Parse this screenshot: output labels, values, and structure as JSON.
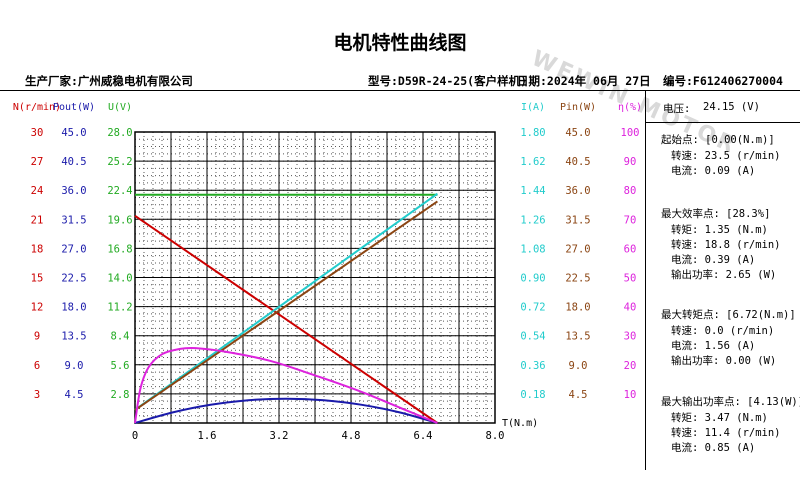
{
  "title": "电机特性曲线图",
  "watermark": "WEWIN MOTOR",
  "manufacturer": "生产厂家:广州威稳电机有限公司",
  "model": "型号:D59R-24-25(客户样机)",
  "date": "日期:2024年 06月 27日",
  "serial": "编号:F612406270004",
  "colors": {
    "n": "#cc0000",
    "pout": "#1a1aaa",
    "u": "#22aa22",
    "i": "#22cccc",
    "pin": "#8b4513",
    "eff": "#dd22dd"
  },
  "chart_data": {
    "type": "line",
    "xlabel": "T(N.m)",
    "x_ticks": [
      "0",
      "1.6",
      "3.2",
      "4.8",
      "6.4",
      "8.0"
    ],
    "xlim": [
      0,
      8.0
    ],
    "axes": [
      {
        "label": "N(r/min)",
        "side": "left",
        "color": "#cc0000",
        "ticks": [
          "3",
          "6",
          "9",
          "12",
          "15",
          "18",
          "21",
          "24",
          "27",
          "30"
        ],
        "range": [
          0,
          33
        ]
      },
      {
        "label": "Pout(W)",
        "side": "left",
        "color": "#1a1aaa",
        "ticks": [
          "4.5",
          "9.0",
          "13.5",
          "18.0",
          "22.5",
          "27.0",
          "31.5",
          "36.0",
          "40.5",
          "45.0"
        ],
        "range": [
          0,
          49.5
        ]
      },
      {
        "label": "U(V)",
        "side": "left",
        "color": "#22aa22",
        "ticks": [
          "2.8",
          "5.6",
          "8.4",
          "11.2",
          "14.0",
          "16.8",
          "19.6",
          "22.4",
          "25.2",
          "28.0"
        ],
        "range": [
          0,
          30.8
        ]
      },
      {
        "label": "I(A)",
        "side": "right",
        "color": "#22cccc",
        "ticks": [
          "0.18",
          "0.36",
          "0.54",
          "0.72",
          "0.90",
          "1.08",
          "1.26",
          "1.44",
          "1.62",
          "1.80"
        ],
        "range": [
          0,
          1.98
        ]
      },
      {
        "label": "Pin(W)",
        "side": "right",
        "color": "#8b4513",
        "ticks": [
          "4.5",
          "9.0",
          "13.5",
          "18.0",
          "22.5",
          "27.0",
          "31.5",
          "36.0",
          "40.5",
          "45.0"
        ],
        "range": [
          0,
          49.5
        ]
      },
      {
        "label": "η(%)",
        "side": "right",
        "color": "#dd22dd",
        "ticks": [
          "10",
          "20",
          "30",
          "40",
          "50",
          "60",
          "70",
          "80",
          "90",
          "100"
        ],
        "range": [
          0,
          110
        ]
      }
    ],
    "series": [
      {
        "key": "n",
        "axis": 0,
        "color": "#cc0000",
        "points": [
          [
            0,
            23.5
          ],
          [
            6.72,
            0
          ]
        ]
      },
      {
        "key": "u",
        "axis": 2,
        "color": "#22aa22",
        "points": [
          [
            0,
            24.15
          ],
          [
            6.72,
            24.15
          ]
        ]
      },
      {
        "key": "i",
        "axis": 3,
        "color": "#22cccc",
        "points": [
          [
            0,
            0.09
          ],
          [
            6.72,
            1.56
          ]
        ]
      },
      {
        "key": "pin",
        "axis": 4,
        "color": "#8b4513",
        "points": [
          [
            0,
            2.2
          ],
          [
            6.72,
            37.7
          ]
        ]
      },
      {
        "key": "pout",
        "axis": 1,
        "color": "#1a1aaa",
        "points": [
          [
            0,
            0
          ],
          [
            0.84,
            1.8
          ],
          [
            1.68,
            3.1
          ],
          [
            2.52,
            3.87
          ],
          [
            3.36,
            4.13
          ],
          [
            4.2,
            3.87
          ],
          [
            5.04,
            3.1
          ],
          [
            5.88,
            1.8
          ],
          [
            6.72,
            0
          ]
        ]
      },
      {
        "key": "eff",
        "axis": 5,
        "color": "#dd22dd",
        "points": [
          [
            0,
            0
          ],
          [
            0.12,
            13
          ],
          [
            0.3,
            21
          ],
          [
            0.6,
            26
          ],
          [
            1.0,
            28
          ],
          [
            1.35,
            28.3
          ],
          [
            2.0,
            27
          ],
          [
            3.0,
            23.5
          ],
          [
            4.0,
            18
          ],
          [
            5.0,
            12
          ],
          [
            6.0,
            5
          ],
          [
            6.72,
            0
          ]
        ]
      }
    ]
  },
  "panel": {
    "voltage_label": "电压:",
    "voltage_value": "24.15 (V)",
    "groups": [
      {
        "title": "起始点: [0.00(N.m)]",
        "lines": [
          "转速: 23.5 (r/min)",
          "电流: 0.09 (A)"
        ]
      },
      {
        "title": "最大效率点: [28.3%]",
        "lines": [
          "转矩: 1.35 (N.m)",
          "转速: 18.8 (r/min)",
          "电流: 0.39 (A)",
          "输出功率: 2.65 (W)"
        ]
      },
      {
        "title": "最大转矩点: [6.72(N.m)]",
        "lines": [
          "转速: 0.0 (r/min)",
          "电流: 1.56 (A)",
          "输出功率: 0.00 (W)"
        ]
      },
      {
        "title": "最大输出功率点: [4.13(W)]",
        "lines": [
          "转矩: 3.47 (N.m)",
          "转速: 11.4 (r/min)",
          "电流: 0.85 (A)"
        ]
      }
    ]
  }
}
